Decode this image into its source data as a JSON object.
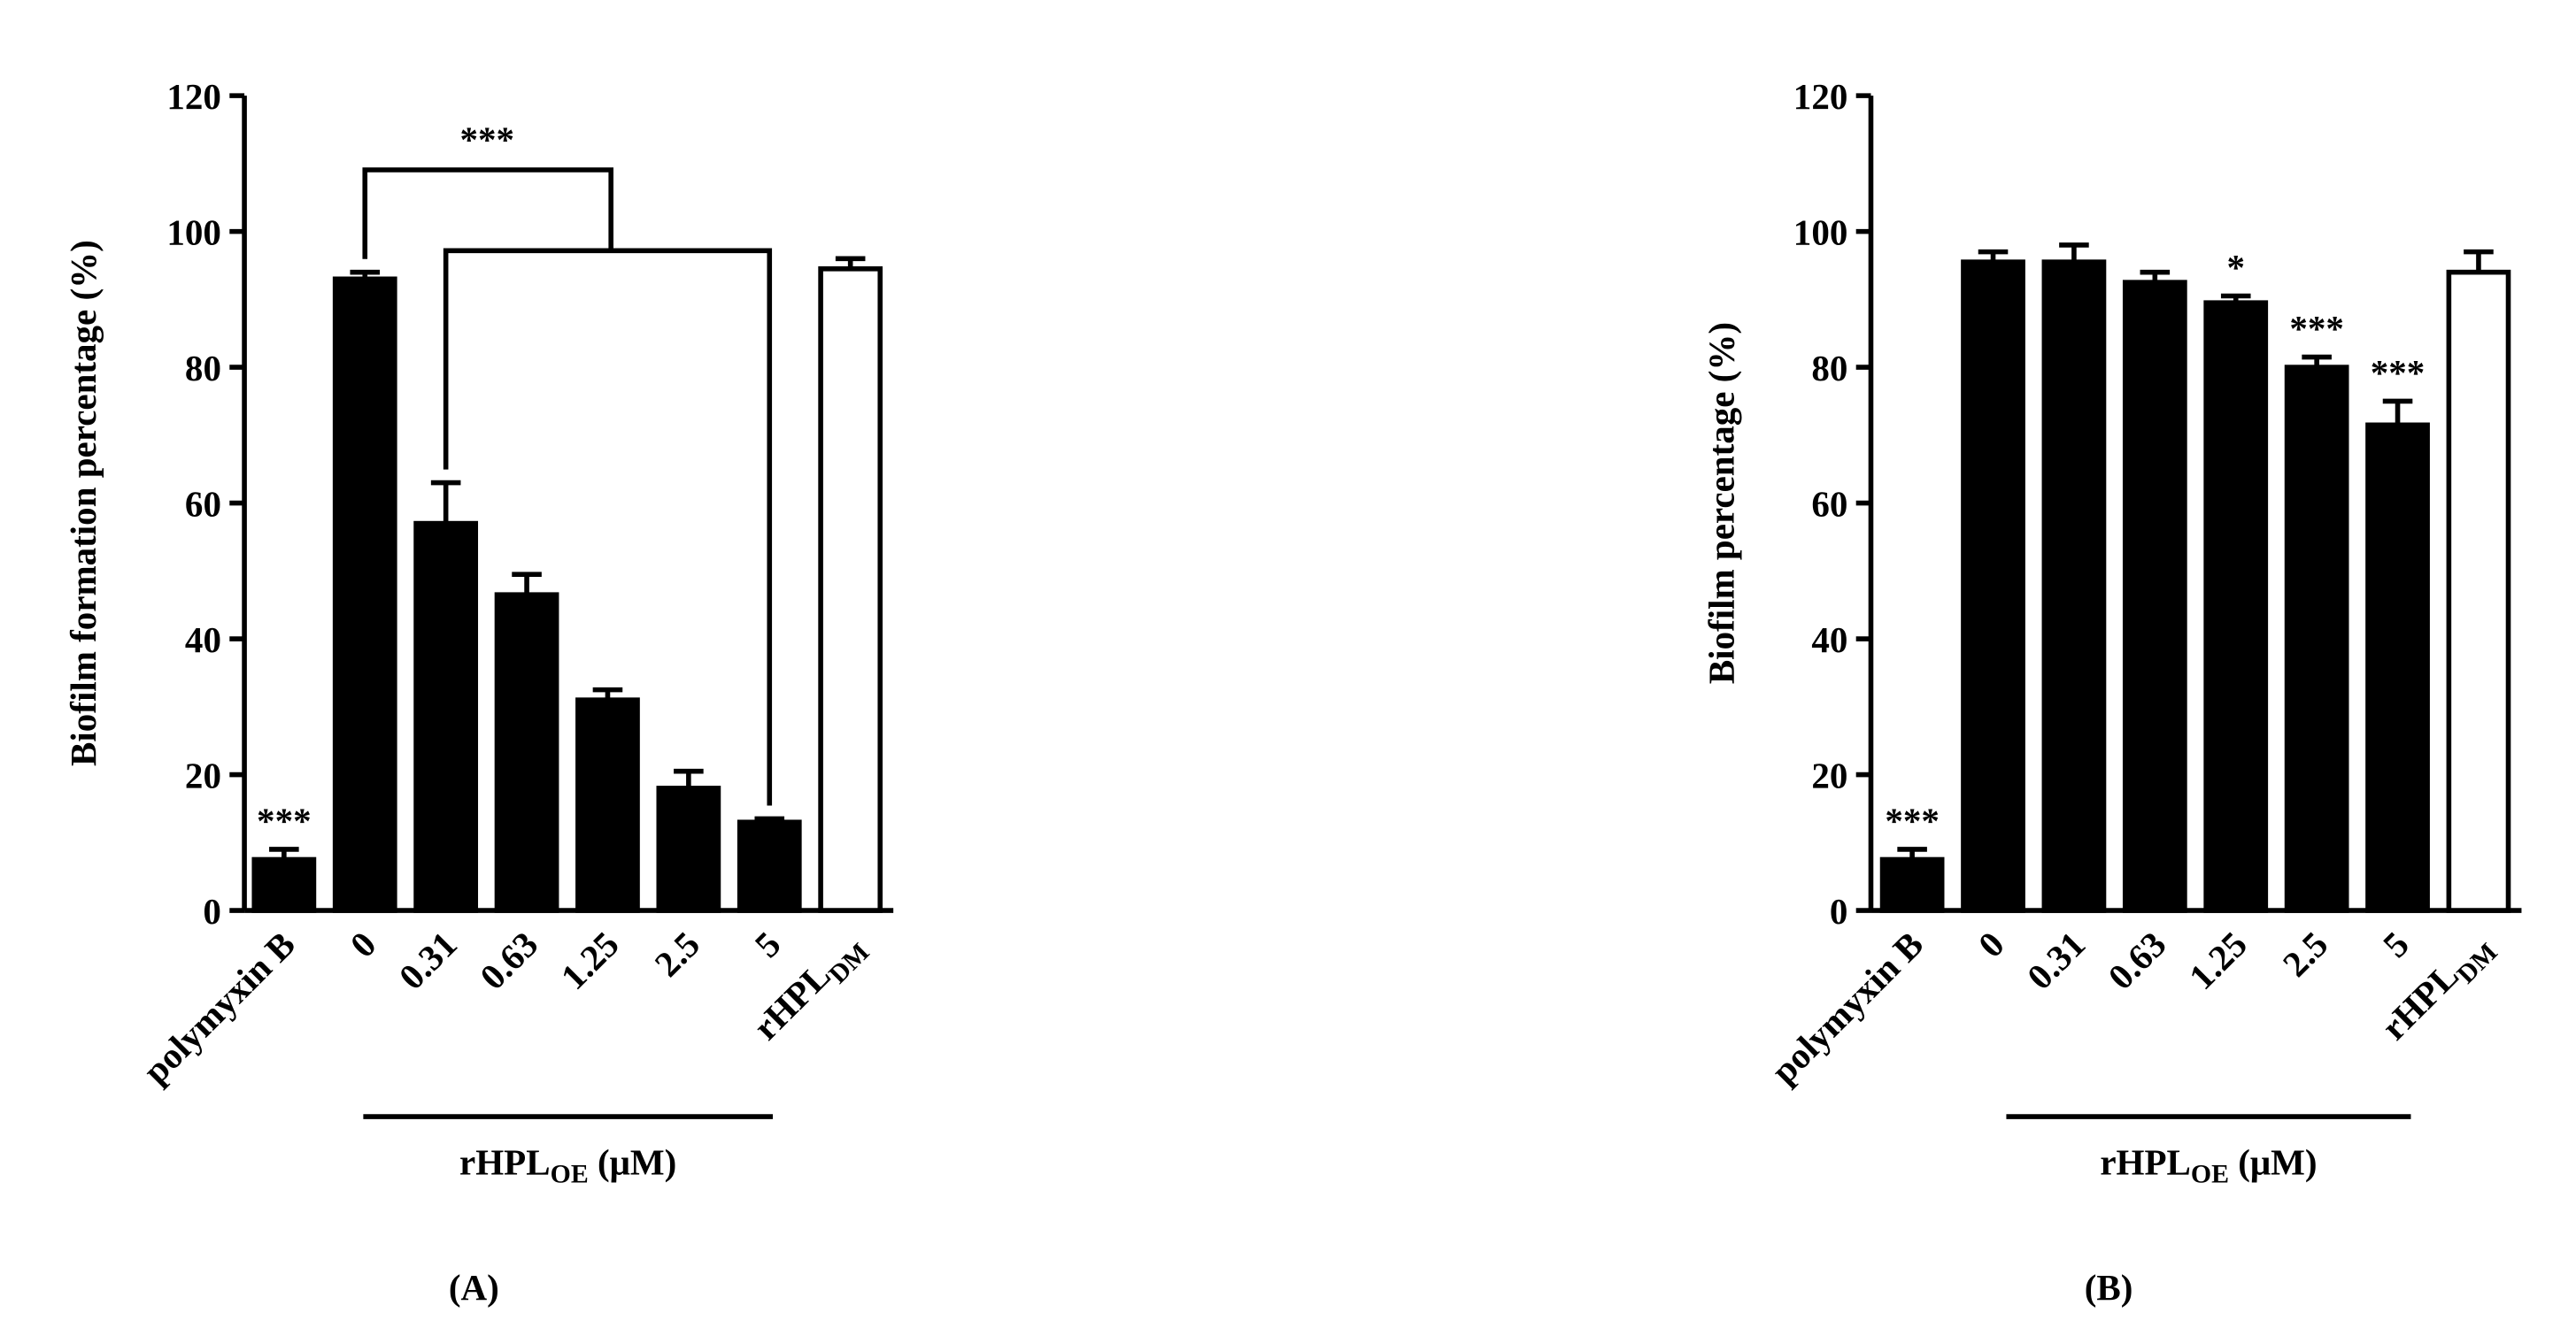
{
  "chart_data": [
    {
      "type": "bar",
      "panel_label": "(A)",
      "y_label": "Biofilm formation percentage (%)",
      "categories": [
        "polymyxin B",
        "0",
        "0.31",
        "0.63",
        "1.25",
        "2.5",
        "5",
        "rHPL"
      ],
      "last_category_subscript": "DM",
      "values": [
        7.5,
        93,
        57,
        46.5,
        31,
        18,
        13,
        94.5
      ],
      "errors": [
        1.5,
        1,
        6,
        3,
        1.5,
        2.5,
        0.5,
        1.5
      ],
      "colors": [
        "#000000",
        "#000000",
        "#000000",
        "#000000",
        "#000000",
        "#000000",
        "#000000",
        "#ffffff"
      ],
      "group_label": {
        "main": "rHPL",
        "sub": "OE",
        "unit": " (μM)"
      },
      "annotations": [
        {
          "text": "***",
          "category": "polymyxin B"
        }
      ],
      "bracket_label": "***",
      "ylim": [
        0,
        120
      ],
      "yticks": [
        0,
        20,
        40,
        60,
        80,
        100,
        120
      ]
    },
    {
      "type": "bar",
      "panel_label": "(B)",
      "y_label": "Biofilm percentage (%)",
      "categories": [
        "polymyxin B",
        "0",
        "0.31",
        "0.63",
        "1.25",
        "2.5",
        "5",
        "rHPL"
      ],
      "last_category_subscript": "DM",
      "values": [
        7.5,
        95.5,
        95.5,
        92.5,
        89.5,
        80,
        71.5,
        94
      ],
      "errors": [
        1.5,
        1.5,
        2.5,
        1.5,
        1,
        1.5,
        3.5,
        3
      ],
      "colors": [
        "#000000",
        "#000000",
        "#000000",
        "#000000",
        "#000000",
        "#000000",
        "#000000",
        "#ffffff"
      ],
      "group_label": {
        "main": "rHPL",
        "sub": "OE",
        "unit": " (μM)"
      },
      "annotations": [
        {
          "text": "***",
          "category": "polymyxin B"
        },
        {
          "text": "*",
          "category": "1.25"
        },
        {
          "text": "***",
          "category": "2.5"
        },
        {
          "text": "***",
          "category": "5"
        }
      ],
      "ylim": [
        0,
        120
      ],
      "yticks": [
        0,
        20,
        40,
        60,
        80,
        100,
        120
      ]
    }
  ]
}
